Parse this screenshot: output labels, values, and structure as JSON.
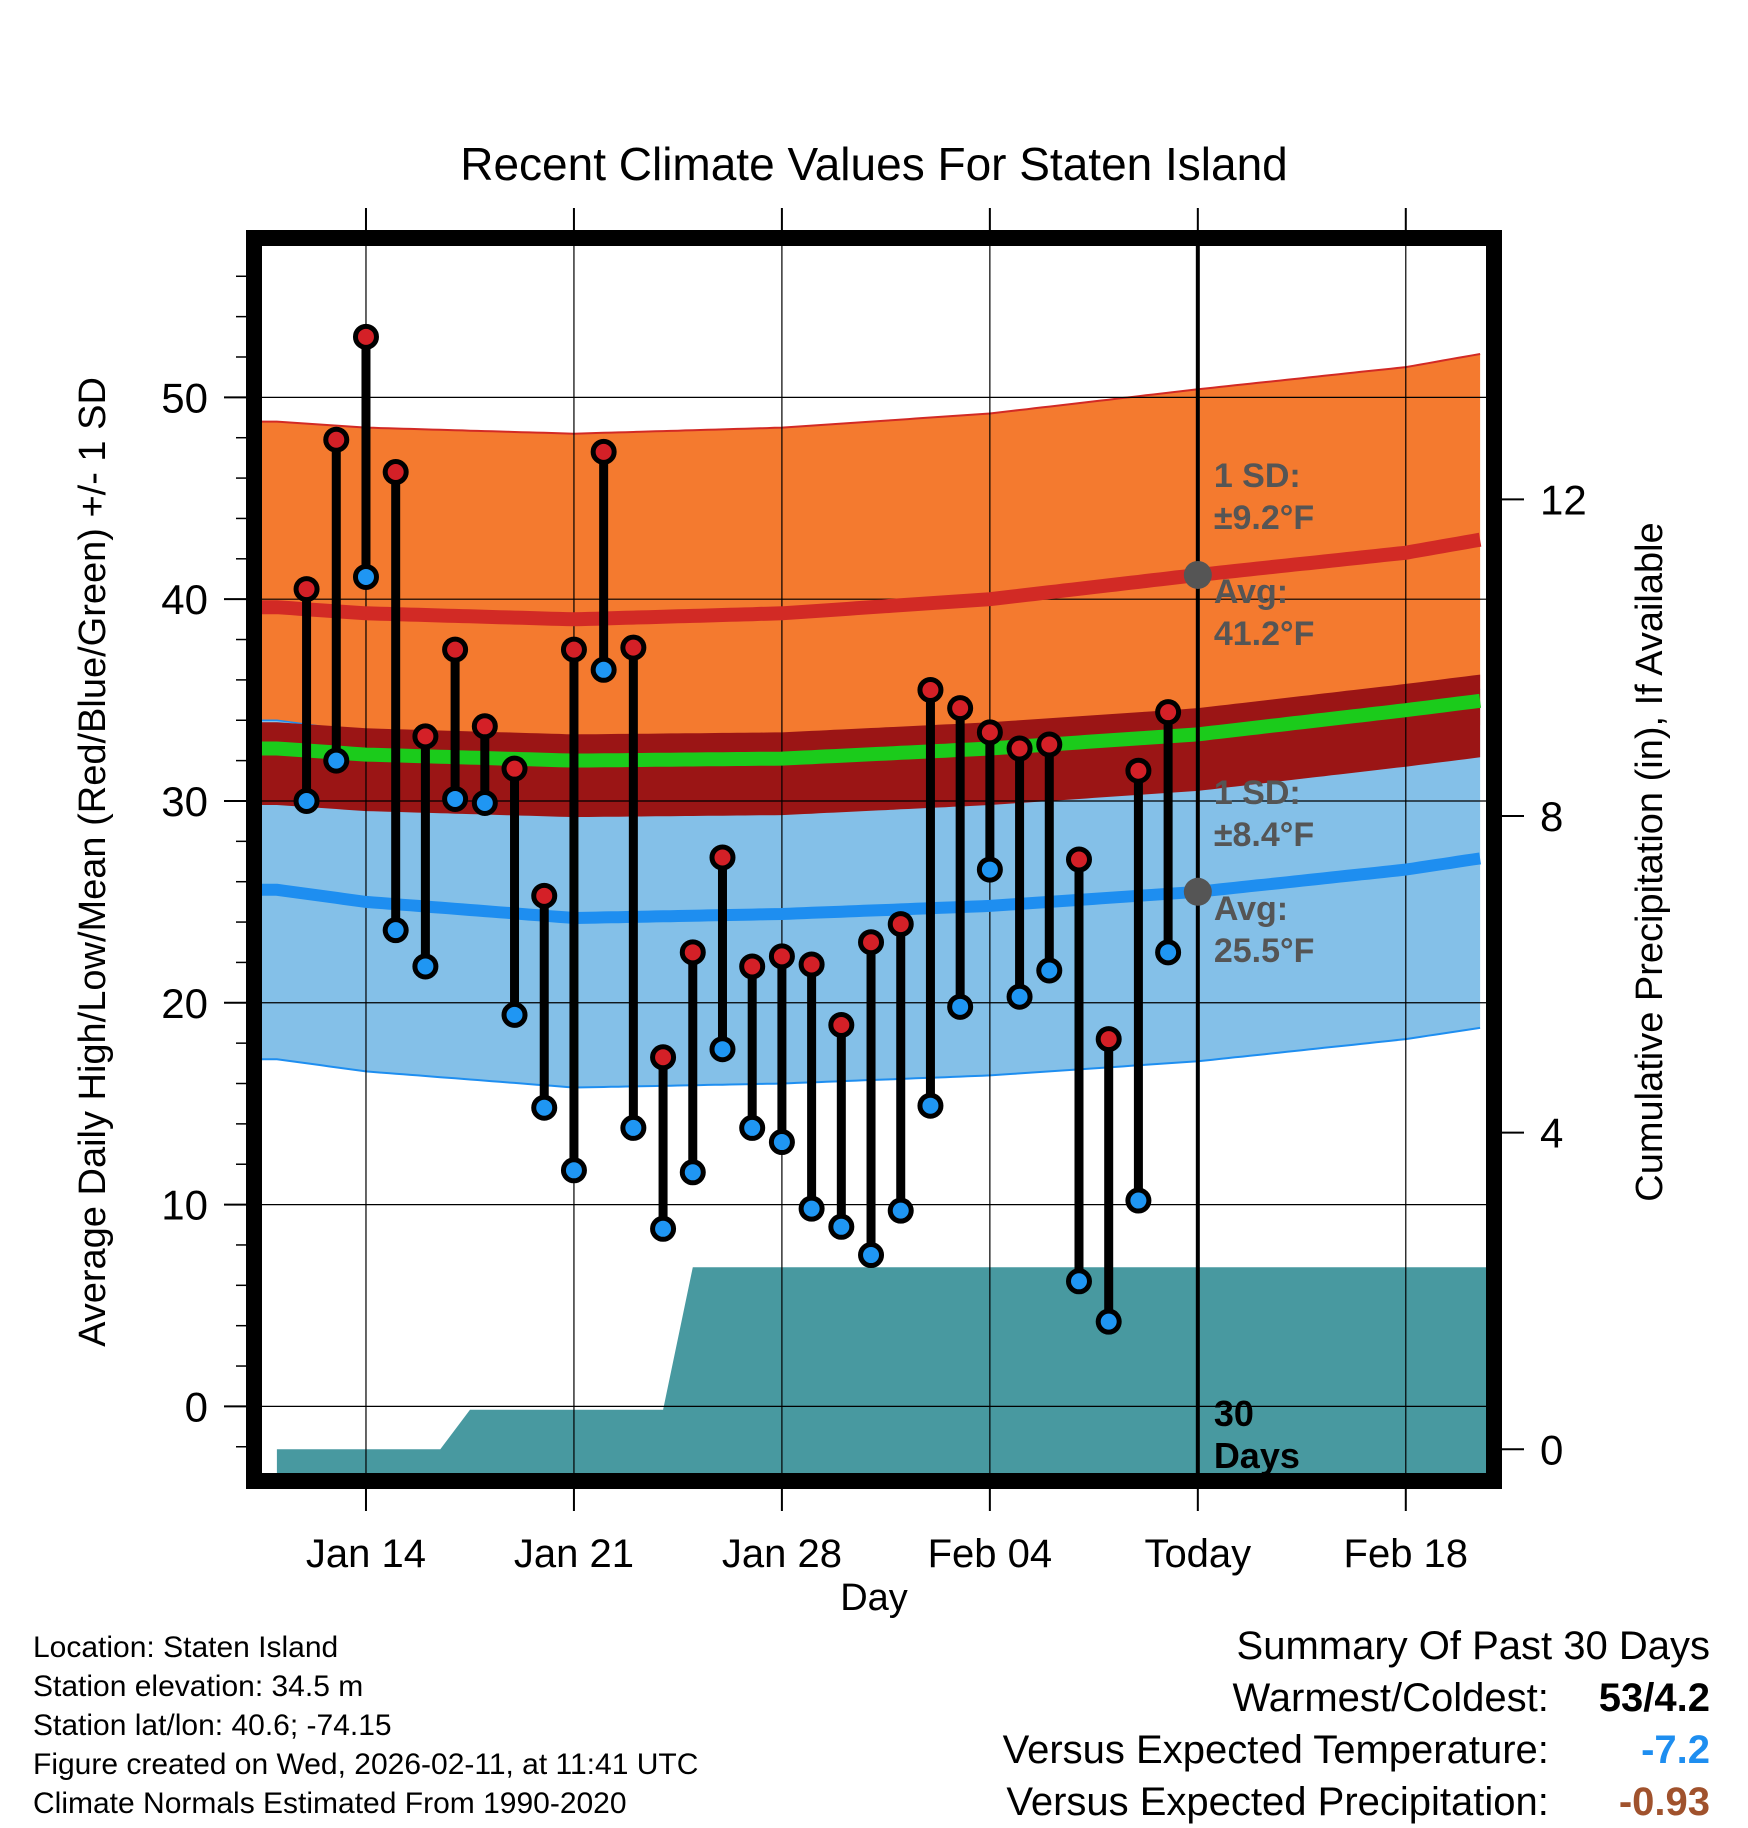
{
  "chart_data": {
    "type": "line",
    "title": "Recent Climate Values For Staten Island",
    "xlabel": "Day",
    "ylabel": "Average Daily High/Low/Mean (Red/Blue/Green) +/- 1 SD",
    "y2label": "Cumulative Precipitation (in), If Available",
    "ylim": [
      -3.3,
      57.5
    ],
    "y_ticks": [
      0,
      10,
      20,
      30,
      40,
      50
    ],
    "y2lim": [
      -0.3,
      15.2
    ],
    "y2_ticks": [
      0,
      4,
      8,
      12
    ],
    "x_range": [
      -3.5,
      37.7
    ],
    "x_tick_positions": [
      0,
      7,
      14,
      21,
      28,
      35
    ],
    "x_tick_labels": [
      "Jan 14",
      "Jan 21",
      "Jan 28",
      "Feb 04",
      "Today",
      "Feb 18"
    ],
    "today_index": 28,
    "observations": {
      "days": [
        -2,
        -1,
        0,
        1,
        2,
        3,
        4,
        5,
        6,
        7,
        8,
        9,
        10,
        11,
        12,
        13,
        14,
        15,
        16,
        17,
        18,
        19,
        20,
        21,
        22,
        23,
        24,
        25,
        26,
        27
      ],
      "highs": [
        40.5,
        47.9,
        53.0,
        46.3,
        33.2,
        37.5,
        33.7,
        31.6,
        25.3,
        37.5,
        47.3,
        37.6,
        17.3,
        22.5,
        27.2,
        21.8,
        22.3,
        21.9,
        18.9,
        23.0,
        23.9,
        35.5,
        34.6,
        33.4,
        32.6,
        32.8,
        27.1,
        18.2,
        31.5,
        34.4
      ],
      "lows": [
        30.0,
        32.0,
        41.1,
        23.6,
        21.8,
        30.1,
        29.9,
        19.4,
        14.8,
        11.7,
        36.5,
        13.8,
        8.8,
        11.6,
        17.7,
        13.8,
        13.1,
        9.8,
        8.9,
        7.5,
        9.7,
        14.9,
        19.8,
        26.6,
        20.3,
        21.6,
        6.2,
        4.2,
        10.2,
        22.5
      ]
    },
    "normals": {
      "days": [
        -3,
        0,
        7,
        14,
        21,
        28,
        35,
        37.7
      ],
      "high_avg": [
        39.6,
        39.3,
        39.0,
        39.3,
        40.0,
        41.2,
        42.3,
        43.0
      ],
      "high_sd": 9.2,
      "low_avg": [
        25.6,
        25.0,
        24.2,
        24.4,
        24.8,
        25.5,
        26.6,
        27.2
      ],
      "low_sd": 8.4,
      "mean_avg": [
        32.6,
        32.3,
        32.0,
        32.1,
        32.6,
        33.3,
        34.5,
        35.0
      ]
    },
    "precip_cumulative": {
      "days": [
        -3,
        2.5,
        3.5,
        10,
        11,
        37.7
      ],
      "values": [
        0,
        0,
        0.5,
        0.5,
        2.3,
        2.3
      ]
    },
    "annotations": {
      "high_sd_label": "1 SD:",
      "high_sd_value": "±9.2°F",
      "high_avg_label": "Avg:",
      "high_avg_value": "41.2°F",
      "low_sd_label": "1 SD:",
      "low_sd_value": "±8.4°F",
      "low_avg_label": "Avg:",
      "low_avg_value": "25.5°F",
      "days_count": "30",
      "days_word": "Days"
    },
    "colors": {
      "high_band": "#f47a2f",
      "high_line": "#d22a25",
      "low_band": "#84c0e8",
      "low_line": "#1e8ef0",
      "mean_band": "#9b1515",
      "mean_line": "#1bcb1b",
      "precip": "#4899a0",
      "high_dot": "#d42027",
      "low_dot": "#1f96f3",
      "annotation_text": "#555555"
    }
  },
  "footer": {
    "location": "Location: Staten Island",
    "elevation": "Station elevation: 34.5 m",
    "latlon": "Station lat/lon: 40.6; -74.15",
    "created": "Figure created on Wed, 2026-02-11, at 11:41 UTC",
    "normals": "Climate Normals Estimated From 1990-2020"
  },
  "summary": {
    "title": "Summary Of Past 30 Days",
    "warmest_label": "Warmest/Coldest:",
    "warmest_value": "53/4.2",
    "temp_label": "Versus Expected Temperature:",
    "temp_value": "-7.2",
    "temp_color": "#1e8ef0",
    "precip_label": "Versus Expected Precipitation:",
    "precip_value": "-0.93",
    "precip_color": "#a0522d"
  }
}
